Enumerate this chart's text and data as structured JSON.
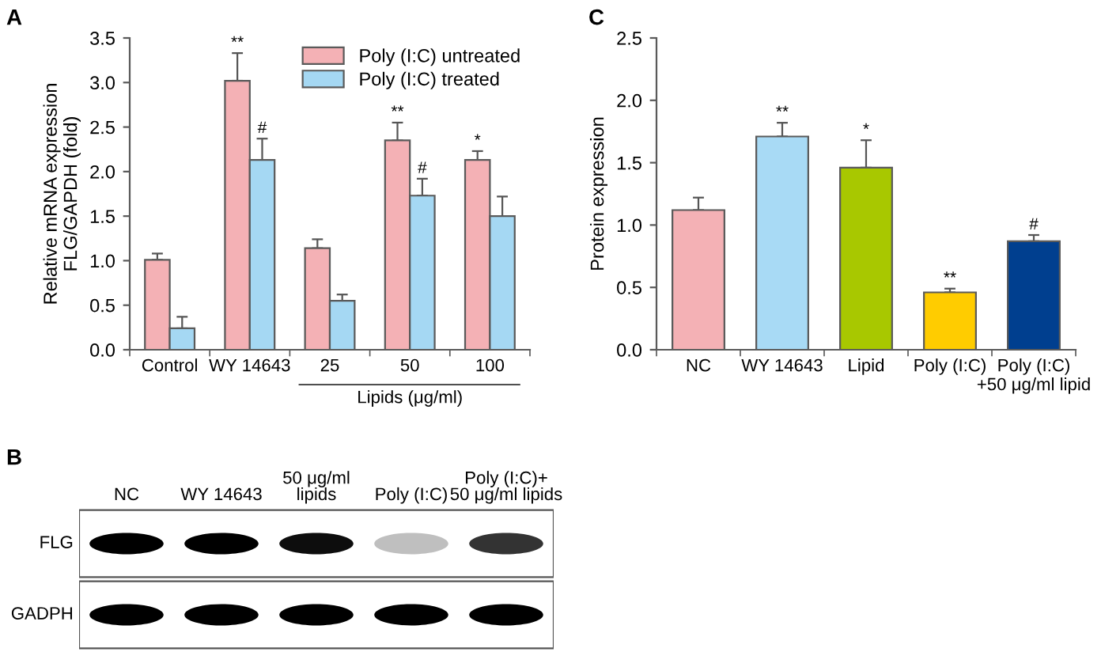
{
  "chart_data": [
    {
      "type": "bar",
      "title": "A",
      "ylabel": "Relative mRNA expression\nFLG/GAPDH (fold)",
      "categories": [
        "Control",
        "WY 14643",
        "25",
        "50",
        "100"
      ],
      "series": [
        {
          "name": "Poly (I:C) untreated",
          "color": "#f4b1b5",
          "values": [
            1.01,
            3.02,
            1.14,
            2.35,
            2.13
          ],
          "errors": [
            [
              1.01,
              1.08
            ],
            [
              3.02,
              3.33
            ],
            [
              1.14,
              1.24
            ],
            [
              2.35,
              2.55
            ],
            [
              2.13,
              2.23
            ]
          ]
        },
        {
          "name": "Poly (I:C) treated",
          "color": "#a5d8f3",
          "values": [
            0.24,
            2.13,
            0.55,
            1.73,
            1.5
          ],
          "errors": [
            [
              0.24,
              0.37
            ],
            [
              2.13,
              2.37
            ],
            [
              0.55,
              0.62
            ],
            [
              1.73,
              1.92
            ],
            [
              1.5,
              1.72
            ]
          ]
        }
      ],
      "ylim": [
        0,
        3.5
      ],
      "yticks": [
        {
          "value": 0,
          "label": "0.0"
        },
        {
          "value": 0.5,
          "label": "0.5"
        },
        {
          "value": 1,
          "label": "1.0"
        },
        {
          "value": 1.5,
          "label": "1.5"
        },
        {
          "value": 2,
          "label": "2.0"
        },
        {
          "value": 2.5,
          "label": "2.5"
        },
        {
          "value": 3,
          "label": "3.0"
        },
        {
          "value": 3.5,
          "label": "3.5"
        }
      ],
      "legend": "top right",
      "annotations": [
        {
          "text": "**",
          "x": "WY 14643",
          "y": 3.33
        },
        {
          "text": "#",
          "x": "WY 14643",
          "y": 2.37
        },
        {
          "text": "**",
          "x": "50",
          "y": 2.55
        },
        {
          "text": "#",
          "x": "50",
          "y": 1.92
        },
        {
          "text": "*",
          "x": "100",
          "y": 2.23
        },
        "Lipids (μg/ml)"
      ]
    },
    {
      "type": "bar",
      "title": "C",
      "ylabel": "Protein expression",
      "categories": [
        "NC",
        "WY 14643",
        "Lipid",
        "Poly (I:C)",
        "Poly (I:C)\n+50 μg/ml lipid"
      ],
      "values": [
        1.12,
        1.71,
        1.46,
        0.46,
        0.87
      ],
      "colors": [
        "#f4b1b5",
        "#a8daf5",
        "#a8c800",
        "#ffcc00",
        "#003f8f"
      ],
      "errors": [
        [
          1.12,
          1.22
        ],
        [
          1.71,
          1.82
        ],
        [
          1.46,
          1.68
        ],
        [
          0.46,
          0.49
        ],
        [
          0.87,
          0.92
        ]
      ],
      "ylim": [
        0,
        2.5
      ],
      "yticks": [
        {
          "value": 0,
          "label": "0.0"
        },
        {
          "value": 0.5,
          "label": "0.5"
        },
        {
          "value": 1,
          "label": "1.0"
        },
        {
          "value": 1.5,
          "label": "1.5"
        },
        {
          "value": 2,
          "label": "2.0"
        },
        {
          "value": 2.5,
          "label": "2.5"
        }
      ],
      "annotations": [
        {
          "text": "**",
          "x": "WY 14643",
          "y": 1.82
        },
        {
          "text": "*",
          "x": "Lipid",
          "y": 1.68
        },
        {
          "text": "**",
          "x": "Poly (I:C)",
          "y": 0.49
        },
        {
          "text": "#",
          "x": "Poly (I:C)\n+50 μg/ml lipid",
          "y": 0.92
        }
      ]
    },
    {
      "type": "other",
      "title": "B",
      "categories": [
        "NC",
        "WY 14643",
        "50 μg/ml\nlipids",
        "Poly (I:C)",
        "Poly (I:C)+\n50 μg/ml lipids"
      ],
      "y_categories": [
        "FLG",
        "GADPH"
      ]
    }
  ]
}
